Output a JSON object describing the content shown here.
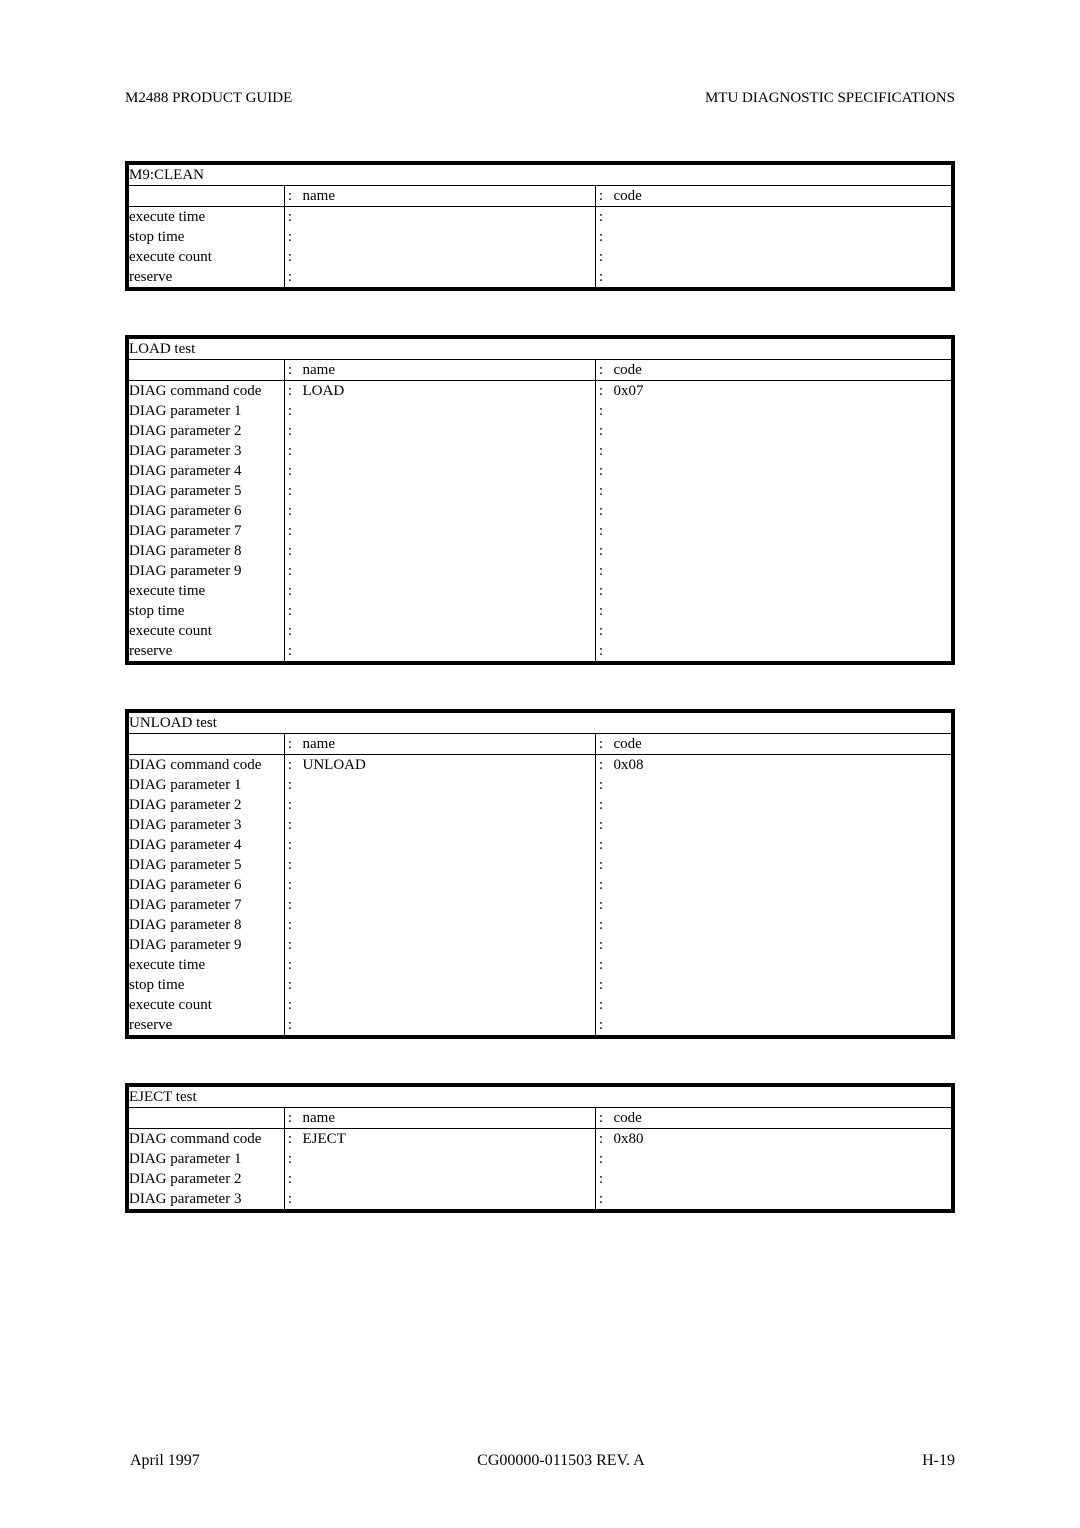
{
  "header": {
    "left": "M2488 PRODUCT GUIDE",
    "right": "MTU DIAGNOSTIC SPECIFICATIONS"
  },
  "footer": {
    "left": "April 1997",
    "center": "CG00000-011503 REV. A",
    "right": "H-19"
  },
  "col_headers": {
    "name": "name",
    "code": "code"
  },
  "tables": [
    {
      "title": "M9:CLEAN",
      "rows": [
        {
          "label": "execute time",
          "name": "",
          "code": ""
        },
        {
          "label": "stop time",
          "name": "",
          "code": ""
        },
        {
          "label": "execute count",
          "name": "",
          "code": ""
        },
        {
          "label": "reserve",
          "name": "",
          "code": ""
        }
      ]
    },
    {
      "title": "LOAD test",
      "rows": [
        {
          "label": "DIAG command code",
          "name": "LOAD",
          "code": "0x07"
        },
        {
          "label": "DIAG parameter 1",
          "name": "",
          "code": ""
        },
        {
          "label": "DIAG parameter 2",
          "name": "",
          "code": ""
        },
        {
          "label": "DIAG parameter 3",
          "name": "",
          "code": ""
        },
        {
          "label": "DIAG parameter 4",
          "name": "",
          "code": ""
        },
        {
          "label": "DIAG parameter 5",
          "name": "",
          "code": ""
        },
        {
          "label": "DIAG parameter 6",
          "name": "",
          "code": ""
        },
        {
          "label": "DIAG parameter 7",
          "name": "",
          "code": ""
        },
        {
          "label": "DIAG parameter 8",
          "name": "",
          "code": ""
        },
        {
          "label": "DIAG parameter 9",
          "name": "",
          "code": ""
        },
        {
          "label": "execute time",
          "name": "",
          "code": ""
        },
        {
          "label": "stop time",
          "name": "",
          "code": ""
        },
        {
          "label": "execute count",
          "name": "",
          "code": ""
        },
        {
          "label": "reserve",
          "name": "",
          "code": ""
        }
      ]
    },
    {
      "title": "UNLOAD test",
      "rows": [
        {
          "label": "DIAG command code",
          "name": "UNLOAD",
          "code": "0x08"
        },
        {
          "label": "DIAG parameter 1",
          "name": "",
          "code": ""
        },
        {
          "label": "DIAG parameter 2",
          "name": "",
          "code": ""
        },
        {
          "label": "DIAG parameter 3",
          "name": "",
          "code": ""
        },
        {
          "label": "DIAG parameter 4",
          "name": "",
          "code": ""
        },
        {
          "label": "DIAG parameter 5",
          "name": "",
          "code": ""
        },
        {
          "label": "DIAG parameter 6",
          "name": "",
          "code": ""
        },
        {
          "label": "DIAG parameter 7",
          "name": "",
          "code": ""
        },
        {
          "label": "DIAG parameter 8",
          "name": "",
          "code": ""
        },
        {
          "label": "DIAG parameter 9",
          "name": "",
          "code": ""
        },
        {
          "label": "execute time",
          "name": "",
          "code": ""
        },
        {
          "label": "stop time",
          "name": "",
          "code": ""
        },
        {
          "label": "execute count",
          "name": "",
          "code": ""
        },
        {
          "label": "reserve",
          "name": "",
          "code": ""
        }
      ]
    },
    {
      "title": "EJECT test",
      "rows": [
        {
          "label": "DIAG command code",
          "name": "EJECT",
          "code": "0x80"
        },
        {
          "label": "DIAG parameter 1",
          "name": "",
          "code": ""
        },
        {
          "label": "DIAG parameter 2",
          "name": "",
          "code": ""
        },
        {
          "label": "DIAG parameter 3",
          "name": "",
          "code": ""
        }
      ]
    }
  ]
}
